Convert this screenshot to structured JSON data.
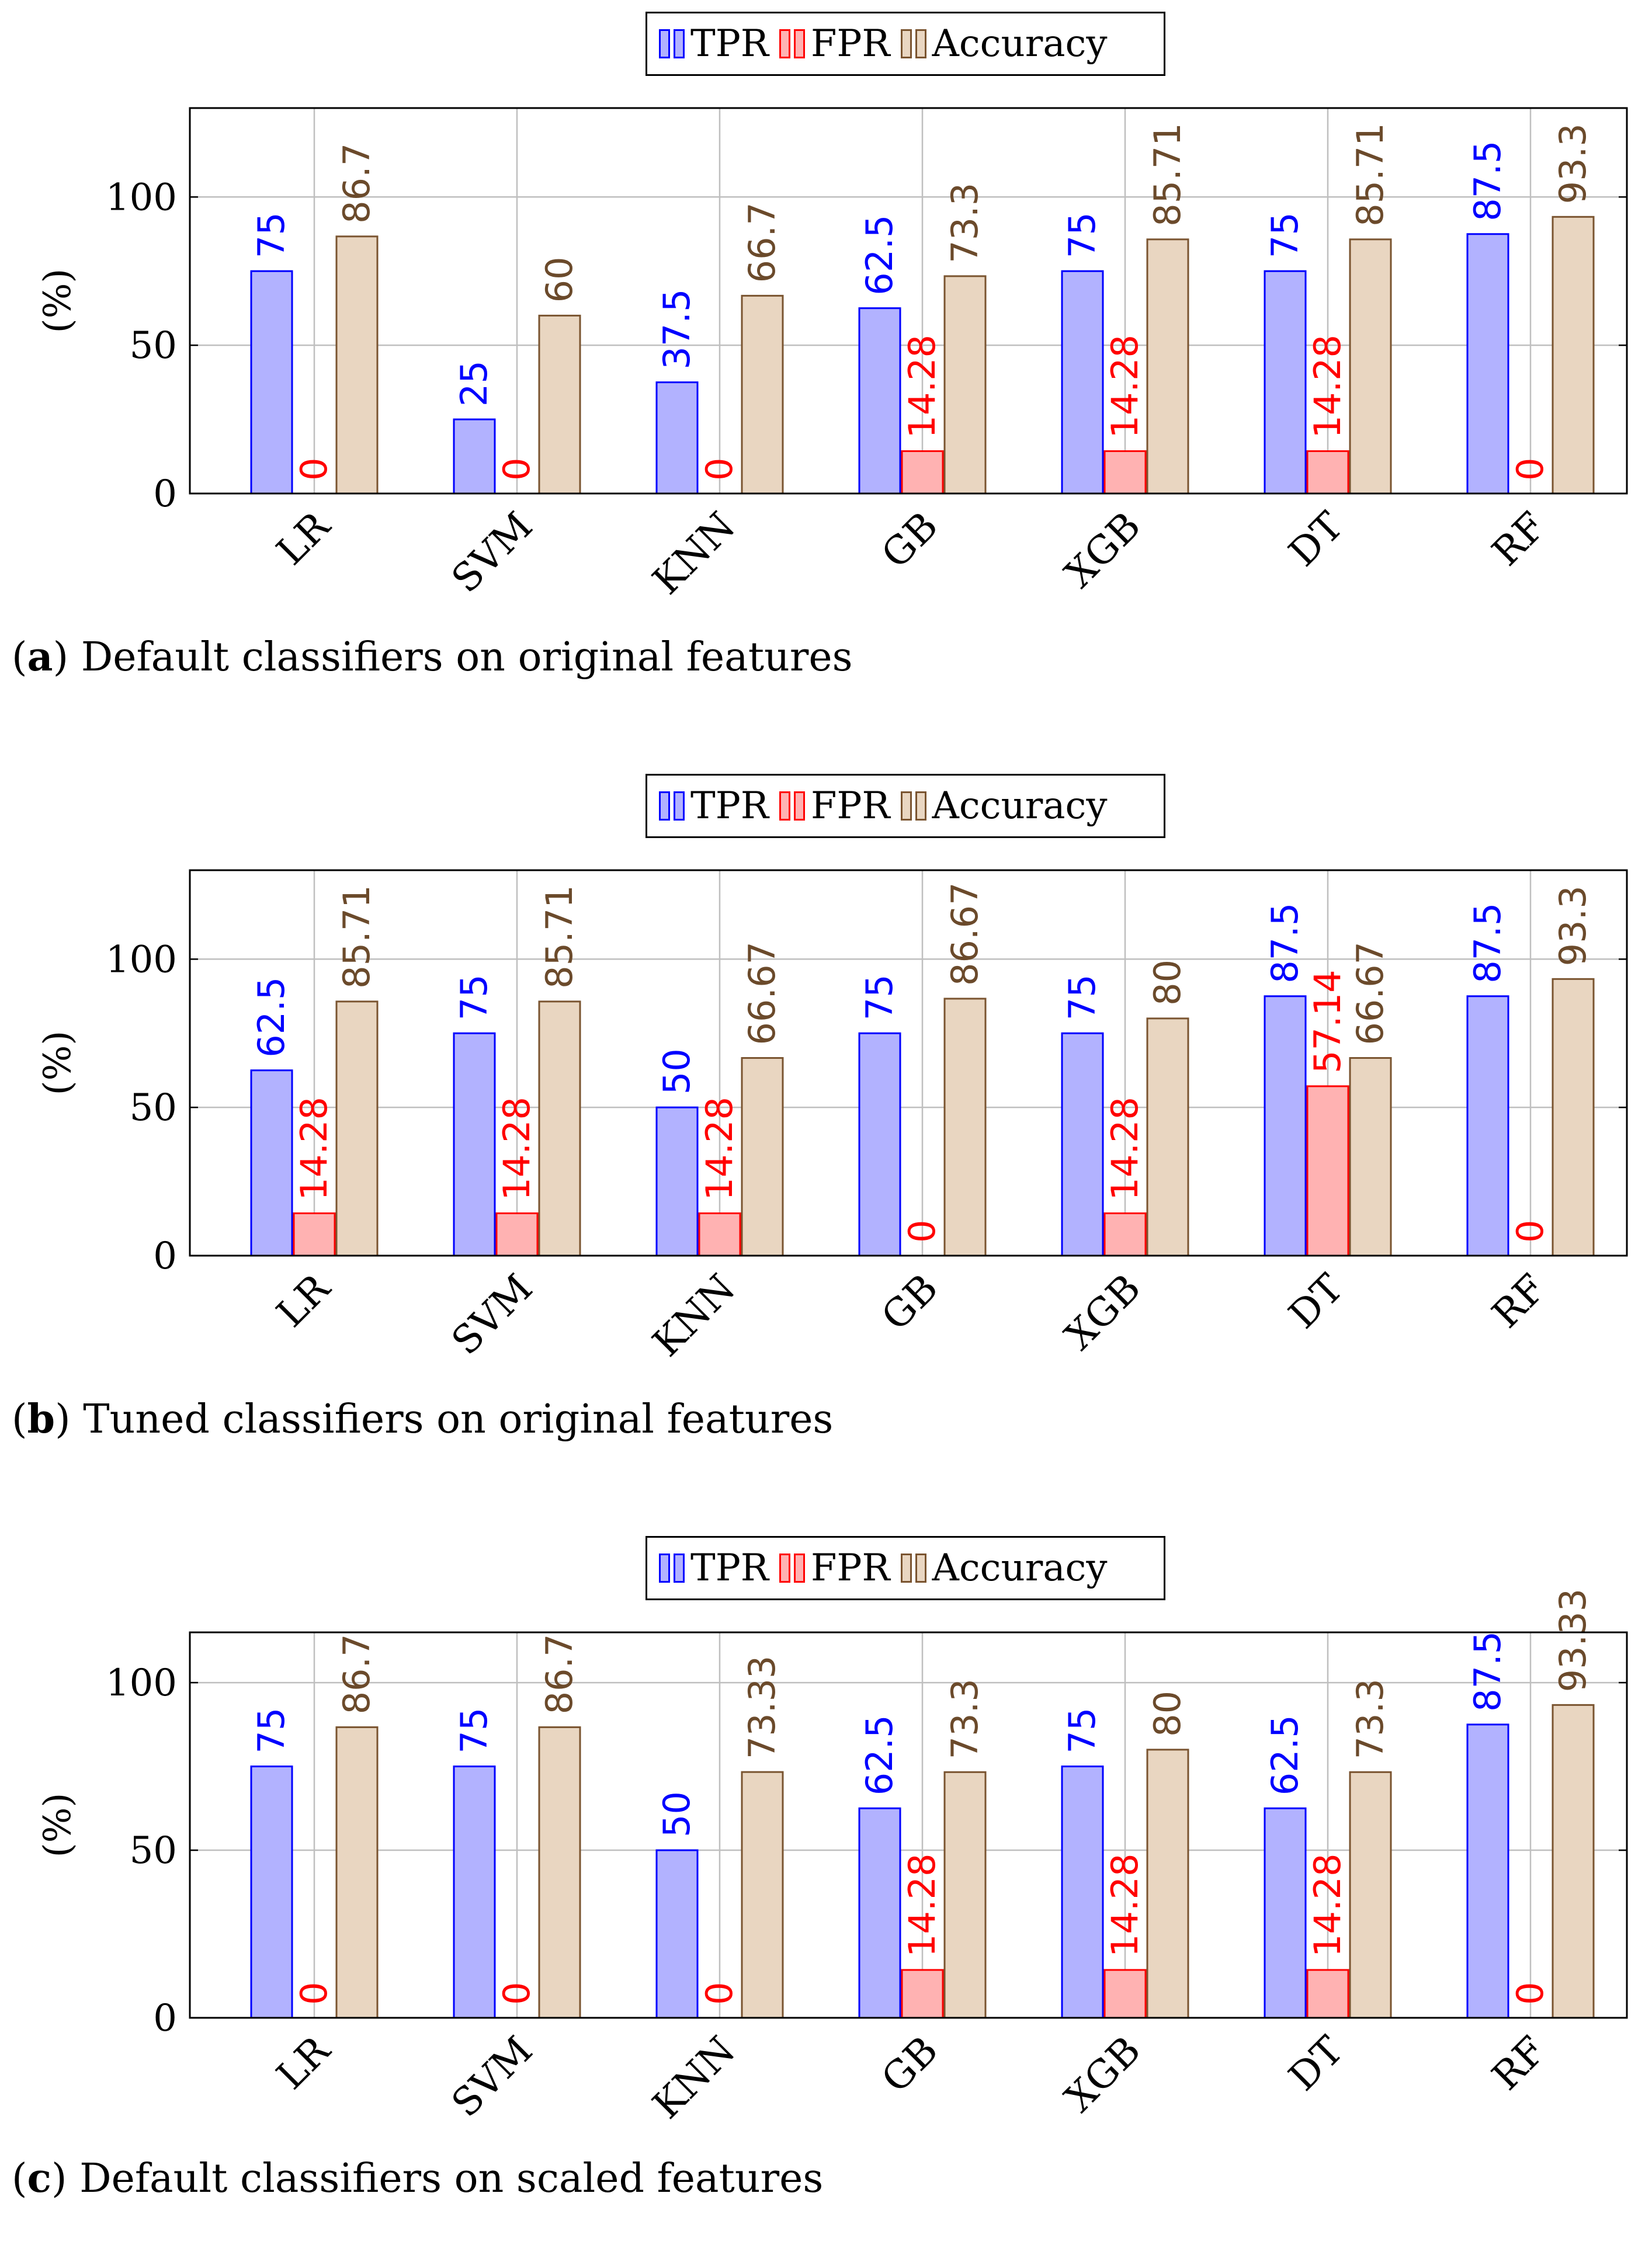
{
  "legend": [
    {
      "name": "TPR",
      "fill": "#b2b2ff",
      "stroke": "#0000ff"
    },
    {
      "name": "FPR",
      "fill": "#ffb2b2",
      "stroke": "#ff0000"
    },
    {
      "name": "Accuracy",
      "fill": "#e9d6c1",
      "stroke": "#7a5430"
    }
  ],
  "label_colors": {
    "TPR": "#0000ff",
    "FPR": "#ff0000",
    "Accuracy": "#6b4a2b"
  },
  "chart_data": [
    {
      "type": "bar",
      "caption_letter": "a",
      "caption_text": "Default classifiers on original features",
      "ylabel": "(%)",
      "ylim": [
        0,
        130
      ],
      "yticks": [
        0,
        50,
        100
      ],
      "grid": true,
      "legend_position": "top-center",
      "categories": [
        "LR",
        "SVM",
        "KNN",
        "GB",
        "XGB",
        "DT",
        "RF"
      ],
      "series": [
        {
          "name": "TPR",
          "values": [
            75,
            25,
            37.5,
            62.5,
            75,
            75,
            87.5
          ],
          "labels": [
            "75",
            "25",
            "37.5",
            "62.5",
            "75",
            "75",
            "87.5"
          ]
        },
        {
          "name": "FPR",
          "values": [
            0,
            0,
            0,
            14.28,
            14.28,
            14.28,
            0
          ],
          "labels": [
            "0",
            "0",
            "0",
            "14.28",
            "14.28",
            "14.28",
            "0"
          ]
        },
        {
          "name": "Accuracy",
          "values": [
            86.7,
            60,
            66.7,
            73.3,
            85.71,
            85.71,
            93.3
          ],
          "labels": [
            "86.7",
            "60",
            "66.7",
            "73.3",
            "85.71",
            "85.71",
            "93.3"
          ]
        }
      ]
    },
    {
      "type": "bar",
      "caption_letter": "b",
      "caption_text": "Tuned classifiers on original features",
      "ylabel": "(%)",
      "ylim": [
        0,
        130
      ],
      "yticks": [
        0,
        50,
        100
      ],
      "grid": true,
      "legend_position": "top-center",
      "categories": [
        "LR",
        "SVM",
        "KNN",
        "GB",
        "XGB",
        "DT",
        "RF"
      ],
      "series": [
        {
          "name": "TPR",
          "values": [
            62.5,
            75,
            50,
            75,
            75,
            87.5,
            87.5
          ],
          "labels": [
            "62.5",
            "75",
            "50",
            "75",
            "75",
            "87.5",
            "87.5"
          ]
        },
        {
          "name": "FPR",
          "values": [
            14.28,
            14.28,
            14.28,
            0,
            14.28,
            57.14,
            0
          ],
          "labels": [
            "14.28",
            "14.28",
            "14.28",
            "0",
            "14.28",
            "57.14",
            "0"
          ]
        },
        {
          "name": "Accuracy",
          "values": [
            85.71,
            85.71,
            66.67,
            86.67,
            80,
            66.67,
            93.3
          ],
          "labels": [
            "85.71",
            "85.71",
            "66.67",
            "86.67",
            "80",
            "66.67",
            "93.3"
          ]
        }
      ]
    },
    {
      "type": "bar",
      "caption_letter": "c",
      "caption_text": "Default classifiers on scaled features",
      "ylabel": "(%)",
      "ylim": [
        0,
        115
      ],
      "yticks": [
        0,
        50,
        100
      ],
      "grid": true,
      "legend_position": "top-center",
      "categories": [
        "LR",
        "SVM",
        "KNN",
        "GB",
        "XGB",
        "DT",
        "RF"
      ],
      "series": [
        {
          "name": "TPR",
          "values": [
            75,
            75,
            50,
            62.5,
            75,
            62.5,
            87.5
          ],
          "labels": [
            "75",
            "75",
            "50",
            "62.5",
            "75",
            "62.5",
            "87.5"
          ]
        },
        {
          "name": "FPR",
          "values": [
            0,
            0,
            0,
            14.28,
            14.28,
            14.28,
            0
          ],
          "labels": [
            "0",
            "0",
            "0",
            "14.28",
            "14.28",
            "14.28",
            "0"
          ]
        },
        {
          "name": "Accuracy",
          "values": [
            86.7,
            86.7,
            73.33,
            73.3,
            80,
            73.3,
            93.33
          ],
          "labels": [
            "86.7",
            "86.7",
            "73.33",
            "73.3",
            "80",
            "73.3",
            "93.33"
          ]
        }
      ]
    }
  ]
}
